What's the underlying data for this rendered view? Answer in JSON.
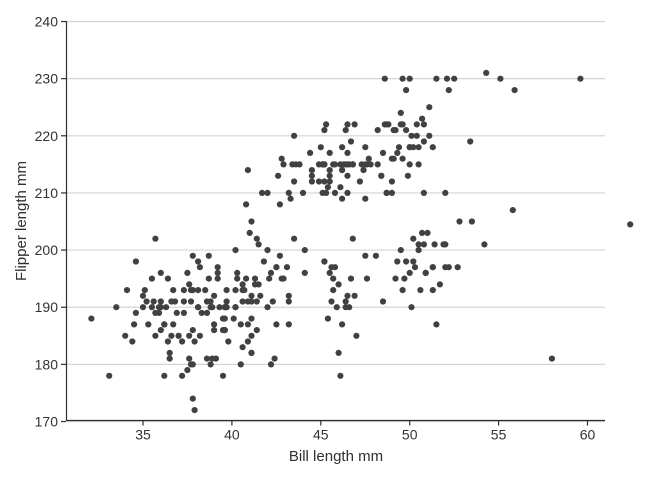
{
  "chart_data": {
    "type": "scatter",
    "title": "",
    "xlabel": "Bill length mm",
    "ylabel": "Flipper length mm",
    "x_ticks": [
      35,
      40,
      45,
      50,
      55,
      60
    ],
    "y_ticks": [
      170,
      180,
      190,
      200,
      210,
      220,
      230,
      240
    ],
    "xlim": [
      30.7,
      61
    ],
    "ylim": [
      170,
      240
    ],
    "grid": "horizontal-major-only",
    "legend": "none",
    "point_color": "#414141",
    "grid_color": "#d4d4d4",
    "axis_color": "#2e2e2e",
    "text_color": "#333333",
    "points": [
      [
        39.1,
        181
      ],
      [
        39.5,
        186
      ],
      [
        40.3,
        195
      ],
      [
        36.7,
        193
      ],
      [
        39.3,
        190
      ],
      [
        38.9,
        181
      ],
      [
        39.2,
        195
      ],
      [
        34.1,
        193
      ],
      [
        42.0,
        190
      ],
      [
        37.8,
        186
      ],
      [
        37.8,
        180
      ],
      [
        41.1,
        182
      ],
      [
        38.6,
        191
      ],
      [
        34.6,
        198
      ],
      [
        36.6,
        185
      ],
      [
        38.7,
        195
      ],
      [
        42.5,
        197
      ],
      [
        34.4,
        184
      ],
      [
        46.0,
        194
      ],
      [
        37.8,
        174
      ],
      [
        37.7,
        180
      ],
      [
        35.9,
        189
      ],
      [
        38.2,
        185
      ],
      [
        38.8,
        180
      ],
      [
        35.3,
        187
      ],
      [
        40.6,
        183
      ],
      [
        40.5,
        187
      ],
      [
        37.9,
        172
      ],
      [
        40.5,
        180
      ],
      [
        39.5,
        178
      ],
      [
        37.2,
        178
      ],
      [
        39.5,
        188
      ],
      [
        40.9,
        184
      ],
      [
        36.4,
        195
      ],
      [
        39.2,
        196
      ],
      [
        38.8,
        190
      ],
      [
        42.2,
        180
      ],
      [
        37.6,
        181
      ],
      [
        39.8,
        184
      ],
      [
        36.5,
        182
      ],
      [
        40.8,
        195
      ],
      [
        36.0,
        186
      ],
      [
        44.1,
        196
      ],
      [
        37.0,
        185
      ],
      [
        39.6,
        190
      ],
      [
        41.1,
        182
      ],
      [
        37.5,
        179
      ],
      [
        36.0,
        190
      ],
      [
        42.3,
        191
      ],
      [
        39.6,
        186
      ],
      [
        40.1,
        188
      ],
      [
        35.0,
        190
      ],
      [
        42.0,
        200
      ],
      [
        34.5,
        187
      ],
      [
        41.4,
        191
      ],
      [
        39.0,
        186
      ],
      [
        40.6,
        193
      ],
      [
        36.5,
        181
      ],
      [
        37.6,
        194
      ],
      [
        35.7,
        185
      ],
      [
        41.3,
        195
      ],
      [
        37.6,
        185
      ],
      [
        41.1,
        192
      ],
      [
        36.4,
        184
      ],
      [
        41.6,
        192
      ],
      [
        35.5,
        195
      ],
      [
        41.1,
        188
      ],
      [
        35.9,
        190
      ],
      [
        41.8,
        198
      ],
      [
        33.5,
        190
      ],
      [
        39.7,
        190
      ],
      [
        39.6,
        190
      ],
      [
        45.8,
        197
      ],
      [
        35.5,
        190
      ],
      [
        42.8,
        195
      ],
      [
        40.9,
        191
      ],
      [
        37.2,
        184
      ],
      [
        36.2,
        187
      ],
      [
        42.1,
        195
      ],
      [
        34.6,
        189
      ],
      [
        42.9,
        195
      ],
      [
        36.7,
        187
      ],
      [
        35.1,
        193
      ],
      [
        37.3,
        191
      ],
      [
        41.3,
        194
      ],
      [
        36.3,
        190
      ],
      [
        36.9,
        189
      ],
      [
        38.3,
        189
      ],
      [
        38.9,
        190
      ],
      [
        35.7,
        202
      ],
      [
        41.1,
        205
      ],
      [
        34.0,
        185
      ],
      [
        39.6,
        186
      ],
      [
        36.2,
        187
      ],
      [
        40.8,
        208
      ],
      [
        38.1,
        190
      ],
      [
        40.3,
        196
      ],
      [
        33.1,
        178
      ],
      [
        43.2,
        192
      ],
      [
        35.0,
        192
      ],
      [
        41.0,
        203
      ],
      [
        37.7,
        191
      ],
      [
        37.8,
        199
      ],
      [
        37.9,
        184
      ],
      [
        39.7,
        190
      ],
      [
        38.6,
        181
      ],
      [
        38.2,
        197
      ],
      [
        38.1,
        198
      ],
      [
        43.2,
        191
      ],
      [
        38.1,
        193
      ],
      [
        45.6,
        197
      ],
      [
        39.7,
        191
      ],
      [
        42.2,
        196
      ],
      [
        39.6,
        188
      ],
      [
        42.7,
        199
      ],
      [
        38.6,
        189
      ],
      [
        37.3,
        189
      ],
      [
        35.7,
        189
      ],
      [
        41.1,
        185
      ],
      [
        36.2,
        178
      ],
      [
        37.7,
        193
      ],
      [
        40.2,
        193
      ],
      [
        41.4,
        186
      ],
      [
        35.2,
        191
      ],
      [
        40.6,
        194
      ],
      [
        38.8,
        191
      ],
      [
        41.5,
        194
      ],
      [
        39.0,
        192
      ],
      [
        44.1,
        200
      ],
      [
        38.5,
        193
      ],
      [
        43.1,
        197
      ],
      [
        36.8,
        191
      ],
      [
        37.5,
        196
      ],
      [
        38.1,
        190
      ],
      [
        41.1,
        191
      ],
      [
        35.6,
        191
      ],
      [
        40.2,
        190
      ],
      [
        37.0,
        185
      ],
      [
        39.7,
        193
      ],
      [
        40.2,
        190
      ],
      [
        40.6,
        191
      ],
      [
        32.1,
        188
      ],
      [
        40.7,
        193
      ],
      [
        37.3,
        193
      ],
      [
        39.0,
        187
      ],
      [
        39.2,
        197
      ],
      [
        36.6,
        191
      ],
      [
        36.0,
        196
      ],
      [
        37.8,
        193
      ],
      [
        36.0,
        191
      ],
      [
        41.5,
        201
      ],
      [
        41.4,
        202
      ],
      [
        40.2,
        200
      ],
      [
        38.7,
        199
      ],
      [
        46.5,
        192
      ],
      [
        50.0,
        196
      ],
      [
        51.3,
        193
      ],
      [
        45.4,
        188
      ],
      [
        52.7,
        197
      ],
      [
        45.2,
        198
      ],
      [
        46.1,
        178
      ],
      [
        51.3,
        197
      ],
      [
        46.0,
        182
      ],
      [
        51.3,
        197
      ],
      [
        46.6,
        190
      ],
      [
        51.7,
        194
      ],
      [
        47.0,
        185
      ],
      [
        52.0,
        201
      ],
      [
        45.9,
        190
      ],
      [
        50.5,
        201
      ],
      [
        50.3,
        197
      ],
      [
        58.0,
        181
      ],
      [
        46.4,
        190
      ],
      [
        49.2,
        195
      ],
      [
        42.4,
        181
      ],
      [
        48.5,
        191
      ],
      [
        43.2,
        187
      ],
      [
        50.6,
        193
      ],
      [
        46.7,
        195
      ],
      [
        52.0,
        197
      ],
      [
        50.5,
        200
      ],
      [
        49.5,
        200
      ],
      [
        46.4,
        191
      ],
      [
        52.8,
        205
      ],
      [
        40.9,
        187
      ],
      [
        54.2,
        201
      ],
      [
        42.5,
        187
      ],
      [
        51.0,
        203
      ],
      [
        49.7,
        195
      ],
      [
        47.5,
        199
      ],
      [
        47.6,
        195
      ],
      [
        52.0,
        210
      ],
      [
        46.9,
        192
      ],
      [
        53.5,
        205
      ],
      [
        49.0,
        210
      ],
      [
        46.2,
        187
      ],
      [
        50.9,
        196
      ],
      [
        45.5,
        196
      ],
      [
        50.9,
        196
      ],
      [
        50.8,
        201
      ],
      [
        50.1,
        190
      ],
      [
        49.0,
        212
      ],
      [
        51.5,
        187
      ],
      [
        49.8,
        198
      ],
      [
        48.1,
        199
      ],
      [
        51.4,
        201
      ],
      [
        45.7,
        193
      ],
      [
        50.7,
        203
      ],
      [
        42.5,
        197
      ],
      [
        52.2,
        197
      ],
      [
        45.2,
        198
      ],
      [
        49.3,
        198
      ],
      [
        50.2,
        202
      ],
      [
        45.6,
        191
      ],
      [
        51.9,
        201
      ],
      [
        46.8,
        202
      ],
      [
        45.7,
        195
      ],
      [
        55.8,
        207
      ],
      [
        43.5,
        202
      ],
      [
        49.6,
        193
      ],
      [
        50.8,
        210
      ],
      [
        50.2,
        198
      ],
      [
        46.1,
        211
      ],
      [
        50.0,
        230
      ],
      [
        48.7,
        210
      ],
      [
        50.0,
        218
      ],
      [
        47.6,
        215
      ],
      [
        46.5,
        210
      ],
      [
        45.4,
        211
      ],
      [
        46.7,
        219
      ],
      [
        43.3,
        209
      ],
      [
        46.8,
        215
      ],
      [
        40.9,
        214
      ],
      [
        49.0,
        216
      ],
      [
        45.5,
        214
      ],
      [
        48.4,
        213
      ],
      [
        45.8,
        210
      ],
      [
        49.3,
        217
      ],
      [
        42.0,
        210
      ],
      [
        49.2,
        221
      ],
      [
        46.2,
        209
      ],
      [
        48.7,
        222
      ],
      [
        50.2,
        218
      ],
      [
        45.1,
        215
      ],
      [
        46.5,
        213
      ],
      [
        46.3,
        215
      ],
      [
        42.9,
        215
      ],
      [
        46.1,
        215
      ],
      [
        44.5,
        213
      ],
      [
        47.8,
        215
      ],
      [
        48.2,
        215
      ],
      [
        50.0,
        215
      ],
      [
        47.3,
        215
      ],
      [
        42.8,
        216
      ],
      [
        45.1,
        215
      ],
      [
        59.6,
        230
      ],
      [
        49.1,
        216
      ],
      [
        48.4,
        213
      ],
      [
        42.6,
        213
      ],
      [
        44.4,
        217
      ],
      [
        44.0,
        210
      ],
      [
        48.7,
        210
      ],
      [
        42.7,
        208
      ],
      [
        49.6,
        216
      ],
      [
        45.3,
        210
      ],
      [
        49.6,
        222
      ],
      [
        50.5,
        218
      ],
      [
        43.6,
        215
      ],
      [
        45.5,
        213
      ],
      [
        50.5,
        215
      ],
      [
        44.9,
        215
      ],
      [
        45.2,
        215
      ],
      [
        46.6,
        215
      ],
      [
        48.5,
        217
      ],
      [
        45.1,
        210
      ],
      [
        50.1,
        220
      ],
      [
        46.5,
        222
      ],
      [
        45.0,
        218
      ],
      [
        43.8,
        215
      ],
      [
        45.5,
        217
      ],
      [
        43.2,
        210
      ],
      [
        50.4,
        220
      ],
      [
        45.3,
        222
      ],
      [
        46.2,
        218
      ],
      [
        45.7,
        215
      ],
      [
        54.3,
        231
      ],
      [
        45.8,
        215
      ],
      [
        49.8,
        221
      ],
      [
        46.2,
        214
      ],
      [
        49.5,
        222
      ],
      [
        43.5,
        212
      ],
      [
        50.7,
        223
      ],
      [
        47.7,
        216
      ],
      [
        46.4,
        221
      ],
      [
        48.2,
        221
      ],
      [
        46.5,
        217
      ],
      [
        46.4,
        215
      ],
      [
        48.6,
        222
      ],
      [
        47.5,
        209
      ],
      [
        51.1,
        220
      ],
      [
        45.2,
        215
      ],
      [
        45.2,
        221
      ],
      [
        49.1,
        221
      ],
      [
        52.5,
        230
      ],
      [
        47.4,
        214
      ],
      [
        50.0,
        218
      ],
      [
        44.9,
        212
      ],
      [
        50.8,
        219
      ],
      [
        43.4,
        215
      ],
      [
        51.3,
        218
      ],
      [
        47.5,
        215
      ],
      [
        52.1,
        230
      ],
      [
        47.5,
        218
      ],
      [
        52.2,
        228
      ],
      [
        45.5,
        212
      ],
      [
        49.5,
        224
      ],
      [
        44.5,
        212
      ],
      [
        50.8,
        222
      ],
      [
        49.4,
        218
      ],
      [
        46.9,
        222
      ],
      [
        51.1,
        225
      ],
      [
        46.8,
        215
      ],
      [
        55.9,
        228
      ],
      [
        53.4,
        219
      ],
      [
        49.8,
        228
      ],
      [
        46.5,
        215
      ],
      [
        55.1,
        230
      ],
      [
        44.5,
        214
      ],
      [
        48.8,
        222
      ],
      [
        47.2,
        212
      ],
      [
        46.8,
        215
      ],
      [
        50.4,
        222
      ],
      [
        45.2,
        212
      ],
      [
        49.9,
        213
      ],
      [
        48.6,
        230
      ],
      [
        49.6,
        230
      ],
      [
        51.5,
        230
      ],
      [
        41.7,
        210
      ],
      [
        43.5,
        220
      ],
      [
        62.4,
        204.5
      ]
    ]
  }
}
